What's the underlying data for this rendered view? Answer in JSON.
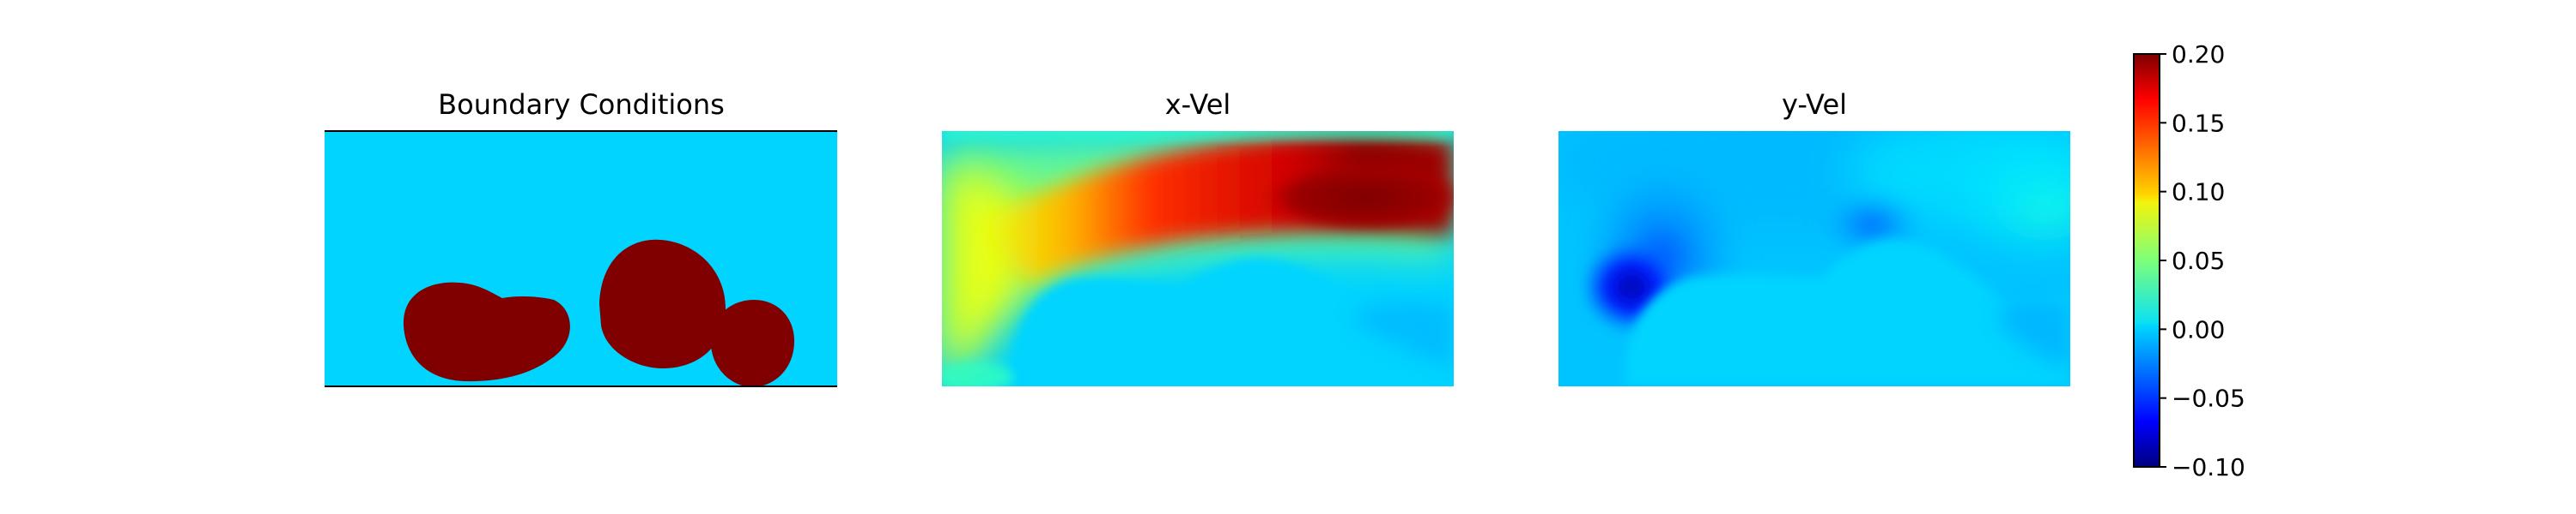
{
  "chart_data": {
    "type": "heatmap",
    "colormap": "jet",
    "panels": [
      {
        "title": "Boundary Conditions",
        "background_value": 0,
        "obstacle_value": 1,
        "obstacle_color": "#800000",
        "background_color": "#00d4ff",
        "walls": [
          "top",
          "bottom"
        ]
      },
      {
        "title": "x-Vel"
      },
      {
        "title": "y-Vel"
      }
    ],
    "colorbar": {
      "range": [
        -0.1,
        0.2
      ],
      "ticks": [
        {
          "value": 0.2,
          "label": "0.20"
        },
        {
          "value": 0.15,
          "label": "0.15"
        },
        {
          "value": 0.1,
          "label": "0.10"
        },
        {
          "value": 0.05,
          "label": "0.05"
        },
        {
          "value": 0.0,
          "label": "0.00"
        },
        {
          "value": -0.05,
          "label": "−0.05"
        },
        {
          "value": -0.1,
          "label": "−0.10"
        }
      ]
    }
  }
}
